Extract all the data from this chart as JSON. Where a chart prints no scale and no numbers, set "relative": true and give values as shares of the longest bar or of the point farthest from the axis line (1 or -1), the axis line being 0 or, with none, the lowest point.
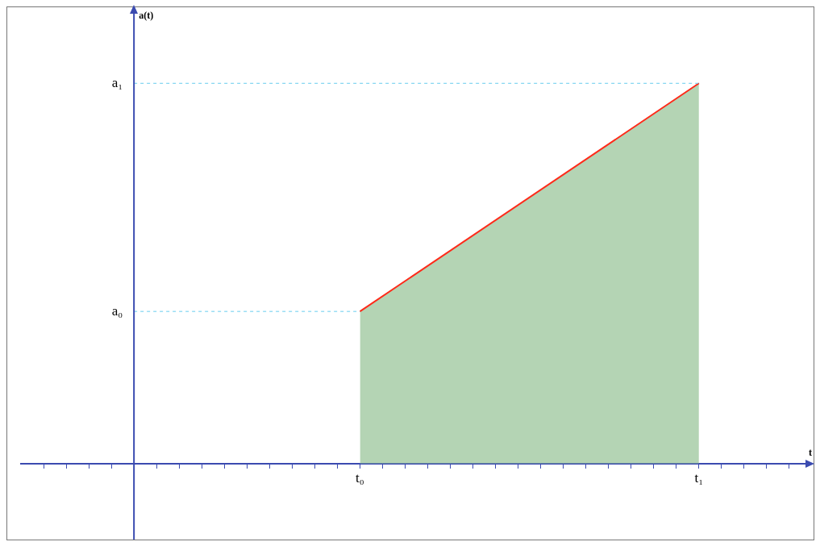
{
  "chart_data": {
    "type": "area",
    "relative": true,
    "xlabel": "t",
    "categories": [
      null,
      null,
      null,
      null,
      null,
      null,
      null,
      null,
      null,
      null,
      null,
      null,
      null,
      null,
      "t₀",
      null,
      null,
      null,
      null,
      null,
      null,
      null,
      null,
      null,
      null,
      null,
      null,
      null,
      null,
      "t₁",
      null,
      null,
      null,
      null
    ],
    "series": [
      {
        "color": "#8fbf8f",
        "values": [
          null,
          null,
          null,
          null,
          null,
          null,
          null,
          null,
          null,
          null,
          null,
          null,
          null,
          null,
          0.4,
          null,
          null,
          null,
          null,
          null,
          null,
          null,
          null,
          null,
          null,
          null,
          null,
          null,
          null,
          1,
          null,
          null,
          null,
          null
        ]
      },
      {
        "type": "line",
        "color": "#ff2a1a",
        "values": [
          null,
          null,
          null,
          null,
          null,
          null,
          null,
          null,
          null,
          null,
          null,
          null,
          null,
          null,
          0.4,
          null,
          null,
          null,
          null,
          null,
          null,
          null,
          null,
          null,
          null,
          null,
          null,
          null,
          null,
          1,
          null,
          null,
          null,
          null
        ]
      }
    ],
    "annotations": [
      "a(t)"
    ],
    "ref_lines": [
      {
        "axis": "y",
        "value": 0.4,
        "label": "a₀",
        "color": "#66ccee",
        "line_style": "dashed"
      },
      {
        "axis": "y",
        "value": 1,
        "label": "a₁",
        "color": "#66ccee",
        "line_style": "dashed"
      }
    ],
    "legend": false
  }
}
